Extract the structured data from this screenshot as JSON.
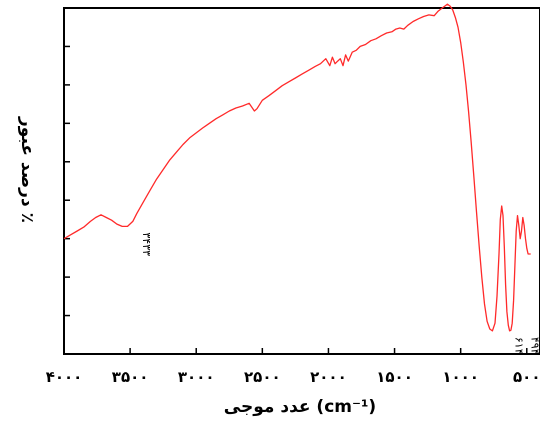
{
  "chart_data": {
    "type": "line",
    "title": "",
    "xlabel": "عدد موجی (cm⁻¹)",
    "ylabel": "درصد عبور ٪",
    "x_direction": "reversed",
    "xlim": [
      4000,
      400
    ],
    "ylim": [
      0,
      9
    ],
    "y_tick_labels_shown": false,
    "grid": false,
    "x_ticks": [
      {
        "value": 4000,
        "label": "۴۰۰۰"
      },
      {
        "value": 3500,
        "label": "۳۵۰۰"
      },
      {
        "value": 3000,
        "label": "۳۰۰۰"
      },
      {
        "value": 2500,
        "label": "۲۵۰۰"
      },
      {
        "value": 2000,
        "label": "۲۰۰۰"
      },
      {
        "value": 1500,
        "label": "۱۵۰۰"
      },
      {
        "value": 1000,
        "label": "۱۰۰۰"
      },
      {
        "value": 500,
        "label": "۵۰۰"
      }
    ],
    "y_ticks": [
      0,
      1,
      2,
      3,
      4,
      5,
      6,
      7,
      8,
      9
    ],
    "series": [
      {
        "color": "#ff2a2a",
        "points": [
          [
            4000,
            3.0
          ],
          [
            3950,
            3.1
          ],
          [
            3900,
            3.2
          ],
          [
            3850,
            3.3
          ],
          [
            3800,
            3.45
          ],
          [
            3760,
            3.55
          ],
          [
            3720,
            3.62
          ],
          [
            3680,
            3.55
          ],
          [
            3640,
            3.48
          ],
          [
            3600,
            3.38
          ],
          [
            3560,
            3.32
          ],
          [
            3520,
            3.32
          ],
          [
            3480,
            3.45
          ],
          [
            3450,
            3.65
          ],
          [
            3400,
            3.95
          ],
          [
            3350,
            4.25
          ],
          [
            3300,
            4.55
          ],
          [
            3250,
            4.8
          ],
          [
            3200,
            5.05
          ],
          [
            3150,
            5.25
          ],
          [
            3100,
            5.45
          ],
          [
            3050,
            5.62
          ],
          [
            3000,
            5.75
          ],
          [
            2950,
            5.88
          ],
          [
            2900,
            6.0
          ],
          [
            2850,
            6.12
          ],
          [
            2800,
            6.22
          ],
          [
            2750,
            6.32
          ],
          [
            2700,
            6.4
          ],
          [
            2650,
            6.45
          ],
          [
            2600,
            6.52
          ],
          [
            2560,
            6.32
          ],
          [
            2540,
            6.38
          ],
          [
            2500,
            6.6
          ],
          [
            2450,
            6.72
          ],
          [
            2400,
            6.85
          ],
          [
            2350,
            6.98
          ],
          [
            2300,
            7.08
          ],
          [
            2250,
            7.18
          ],
          [
            2200,
            7.28
          ],
          [
            2150,
            7.38
          ],
          [
            2100,
            7.48
          ],
          [
            2060,
            7.55
          ],
          [
            2020,
            7.68
          ],
          [
            1990,
            7.5
          ],
          [
            1970,
            7.72
          ],
          [
            1950,
            7.55
          ],
          [
            1930,
            7.62
          ],
          [
            1910,
            7.68
          ],
          [
            1890,
            7.5
          ],
          [
            1870,
            7.78
          ],
          [
            1850,
            7.62
          ],
          [
            1820,
            7.85
          ],
          [
            1790,
            7.9
          ],
          [
            1760,
            8.0
          ],
          [
            1720,
            8.05
          ],
          [
            1680,
            8.15
          ],
          [
            1640,
            8.2
          ],
          [
            1600,
            8.28
          ],
          [
            1560,
            8.35
          ],
          [
            1520,
            8.38
          ],
          [
            1490,
            8.45
          ],
          [
            1460,
            8.48
          ],
          [
            1430,
            8.45
          ],
          [
            1400,
            8.55
          ],
          [
            1360,
            8.65
          ],
          [
            1320,
            8.72
          ],
          [
            1280,
            8.78
          ],
          [
            1240,
            8.82
          ],
          [
            1200,
            8.8
          ],
          [
            1170,
            8.92
          ],
          [
            1140,
            9.0
          ],
          [
            1120,
            9.05
          ],
          [
            1100,
            9.1
          ],
          [
            1080,
            9.05
          ],
          [
            1060,
            8.95
          ],
          [
            1040,
            8.75
          ],
          [
            1020,
            8.5
          ],
          [
            1000,
            8.1
          ],
          [
            980,
            7.6
          ],
          [
            960,
            7.0
          ],
          [
            940,
            6.3
          ],
          [
            920,
            5.5
          ],
          [
            900,
            4.6
          ],
          [
            880,
            3.7
          ],
          [
            860,
            2.8
          ],
          [
            840,
            2.0
          ],
          [
            820,
            1.3
          ],
          [
            800,
            0.85
          ],
          [
            780,
            0.65
          ],
          [
            760,
            0.6
          ],
          [
            740,
            0.8
          ],
          [
            725,
            1.5
          ],
          [
            710,
            2.6
          ],
          [
            700,
            3.5
          ],
          [
            690,
            3.85
          ],
          [
            680,
            3.6
          ],
          [
            670,
            2.8
          ],
          [
            660,
            1.8
          ],
          [
            650,
            1.1
          ],
          [
            640,
            0.75
          ],
          [
            630,
            0.6
          ],
          [
            620,
            0.62
          ],
          [
            610,
            0.8
          ],
          [
            600,
            1.4
          ],
          [
            590,
            2.3
          ],
          [
            580,
            3.2
          ],
          [
            570,
            3.6
          ],
          [
            560,
            3.35
          ],
          [
            550,
            3.0
          ],
          [
            540,
            3.2
          ],
          [
            530,
            3.55
          ],
          [
            520,
            3.35
          ],
          [
            510,
            3.0
          ],
          [
            500,
            2.75
          ],
          [
            490,
            2.6
          ],
          [
            470,
            2.6
          ]
        ]
      }
    ],
    "annotations": [
      {
        "x": 3433,
        "y": 3.32,
        "label": "۳۴۳۳"
      },
      {
        "x": 614,
        "y": 0.6,
        "label": "۶۱۴"
      },
      {
        "x": 494,
        "y": 0.6,
        "label": "۴۹۴"
      }
    ]
  }
}
